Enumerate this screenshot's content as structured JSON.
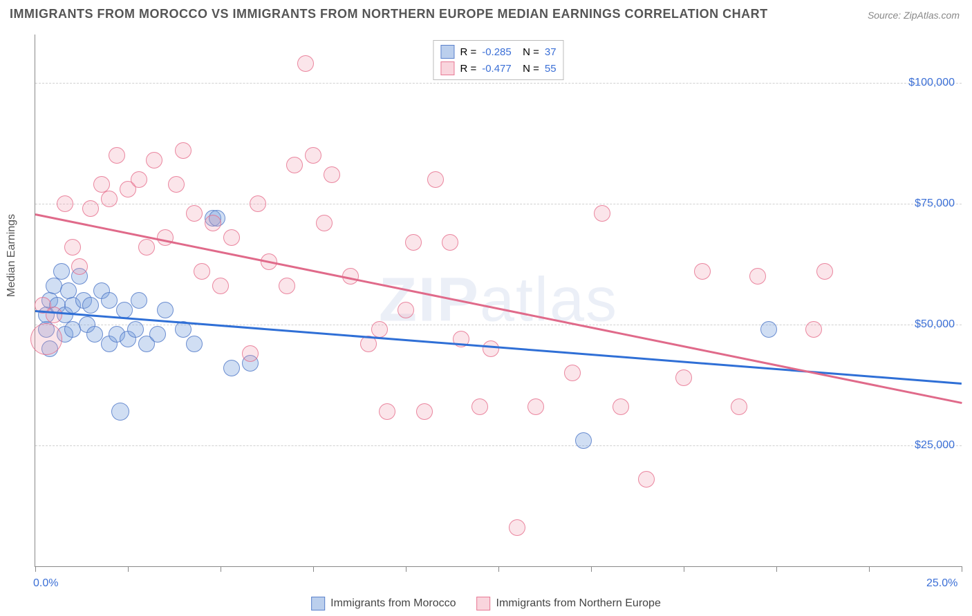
{
  "title": "IMMIGRANTS FROM MOROCCO VS IMMIGRANTS FROM NORTHERN EUROPE MEDIAN EARNINGS CORRELATION CHART",
  "source": "Source: ZipAtlas.com",
  "watermark": "ZIPatlas",
  "y_axis_label": "Median Earnings",
  "chart": {
    "type": "scatter",
    "xlim": [
      0,
      25
    ],
    "ylim": [
      0,
      110000
    ],
    "x_tick_positions": [
      0,
      2.5,
      5,
      7.5,
      10,
      12.5,
      15,
      17.5,
      20,
      22.5,
      25
    ],
    "x_tick_labels": {
      "0": "0.0%",
      "25": "25.0%"
    },
    "y_gridlines": [
      25000,
      50000,
      75000,
      100000
    ],
    "y_tick_labels": {
      "25000": "$25,000",
      "50000": "$50,000",
      "75000": "$75,000",
      "100000": "$100,000"
    },
    "grid_color": "#d0d0d0",
    "background_color": "#ffffff",
    "axis_color": "#888888",
    "tick_label_color": "#3b6fd6",
    "point_radius": 11,
    "series": [
      {
        "name": "Immigrants from Morocco",
        "color_fill": "rgba(120,160,220,0.35)",
        "color_stroke": "rgba(80,120,200,0.8)",
        "R": "-0.285",
        "N": "37",
        "trend": {
          "x1": 0,
          "y1": 53000,
          "x2": 25,
          "y2": 38000,
          "color": "#2f6fd6"
        },
        "points": [
          [
            0.3,
            52000
          ],
          [
            0.3,
            49000
          ],
          [
            0.4,
            55000
          ],
          [
            0.5,
            58000
          ],
          [
            0.6,
            54000
          ],
          [
            0.7,
            61000
          ],
          [
            0.8,
            52000
          ],
          [
            0.8,
            48000
          ],
          [
            0.9,
            57000
          ],
          [
            1.0,
            54000
          ],
          [
            1.0,
            49000
          ],
          [
            1.2,
            60000
          ],
          [
            1.3,
            55000
          ],
          [
            1.4,
            50000
          ],
          [
            1.5,
            54000
          ],
          [
            1.6,
            48000
          ],
          [
            1.8,
            57000
          ],
          [
            2.0,
            46000
          ],
          [
            2.0,
            55000
          ],
          [
            2.2,
            48000
          ],
          [
            2.3,
            32000,
            12
          ],
          [
            2.4,
            53000
          ],
          [
            2.5,
            47000
          ],
          [
            2.7,
            49000
          ],
          [
            2.8,
            55000
          ],
          [
            3.0,
            46000
          ],
          [
            3.3,
            48000
          ],
          [
            3.5,
            53000
          ],
          [
            4.0,
            49000
          ],
          [
            4.3,
            46000
          ],
          [
            4.8,
            72000
          ],
          [
            4.9,
            72000
          ],
          [
            5.3,
            41000
          ],
          [
            5.8,
            42000
          ],
          [
            14.8,
            26000
          ],
          [
            19.8,
            49000
          ],
          [
            0.4,
            45000
          ]
        ]
      },
      {
        "name": "Immigrants from Northern Europe",
        "color_fill": "rgba(240,150,170,0.25)",
        "color_stroke": "rgba(230,110,140,0.8)",
        "R": "-0.477",
        "N": "55",
        "trend": {
          "x1": 0,
          "y1": 73000,
          "x2": 25,
          "y2": 34000,
          "color": "#e06a8a"
        },
        "points": [
          [
            0.2,
            54000
          ],
          [
            0.3,
            47000,
            22
          ],
          [
            0.5,
            52000
          ],
          [
            0.8,
            75000
          ],
          [
            1.0,
            66000
          ],
          [
            1.2,
            62000
          ],
          [
            1.5,
            74000
          ],
          [
            1.8,
            79000
          ],
          [
            2.0,
            76000
          ],
          [
            2.2,
            85000
          ],
          [
            2.5,
            78000
          ],
          [
            2.8,
            80000
          ],
          [
            3.0,
            66000
          ],
          [
            3.2,
            84000
          ],
          [
            3.5,
            68000
          ],
          [
            3.8,
            79000
          ],
          [
            4.0,
            86000
          ],
          [
            4.3,
            73000
          ],
          [
            4.5,
            61000
          ],
          [
            4.8,
            71000
          ],
          [
            5.0,
            58000
          ],
          [
            5.3,
            68000
          ],
          [
            5.8,
            44000
          ],
          [
            6.0,
            75000
          ],
          [
            6.3,
            63000
          ],
          [
            6.8,
            58000
          ],
          [
            7.0,
            83000
          ],
          [
            7.3,
            104000
          ],
          [
            7.5,
            85000
          ],
          [
            7.8,
            71000
          ],
          [
            8.0,
            81000
          ],
          [
            8.5,
            60000
          ],
          [
            9.0,
            46000
          ],
          [
            9.3,
            49000
          ],
          [
            9.5,
            32000
          ],
          [
            10.0,
            53000
          ],
          [
            10.2,
            67000
          ],
          [
            10.5,
            32000
          ],
          [
            10.8,
            80000
          ],
          [
            11.2,
            67000
          ],
          [
            11.5,
            47000
          ],
          [
            12.0,
            33000
          ],
          [
            12.3,
            45000
          ],
          [
            13.0,
            8000
          ],
          [
            13.5,
            33000
          ],
          [
            14.5,
            40000
          ],
          [
            15.3,
            73000
          ],
          [
            15.8,
            33000
          ],
          [
            16.5,
            18000
          ],
          [
            17.5,
            39000
          ],
          [
            18.0,
            61000
          ],
          [
            19.0,
            33000
          ],
          [
            19.5,
            60000
          ],
          [
            21.0,
            49000
          ],
          [
            21.3,
            61000
          ]
        ]
      }
    ]
  },
  "legend": {
    "series1_label": "Immigrants from Morocco",
    "series2_label": "Immigrants from Northern Europe"
  }
}
